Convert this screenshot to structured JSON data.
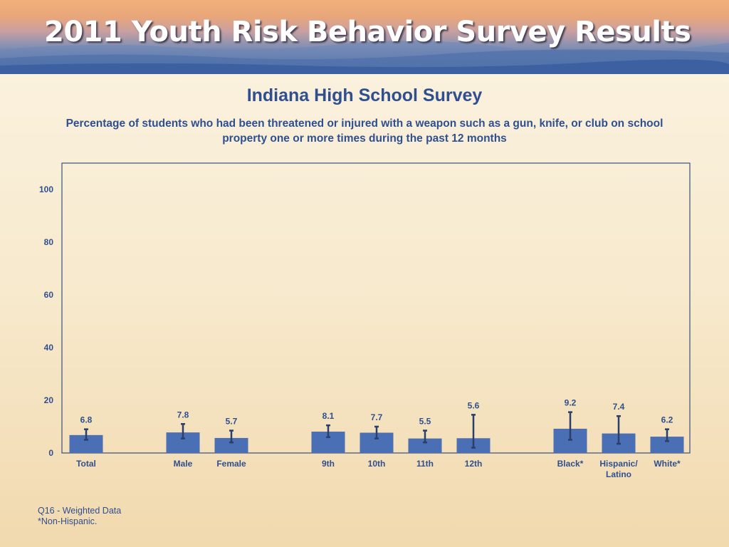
{
  "banner": {
    "title": "2011 Youth Risk Behavior Survey Results"
  },
  "chart_data": {
    "type": "bar",
    "title": "Indiana High School Survey",
    "subtitle": "Percentage of students who had been threatened or injured with a weapon such as a gun, knife, or club on school property one or more times during the past 12 months",
    "ylim": [
      0,
      100
    ],
    "yticks": [
      0,
      20,
      40,
      60,
      80,
      100
    ],
    "grid": false,
    "categories": [
      "Total",
      "Male",
      "Female",
      "9th",
      "10th",
      "11th",
      "12th",
      "Black*",
      "Hispanic/\nLatino",
      "White*"
    ],
    "groups": [
      [
        "Total"
      ],
      [
        "Male",
        "Female"
      ],
      [
        "9th",
        "10th",
        "11th",
        "12th"
      ],
      [
        "Black*",
        "Hispanic/\nLatino",
        "White*"
      ]
    ],
    "values": [
      6.8,
      7.8,
      5.7,
      8.1,
      7.7,
      5.5,
      5.6,
      9.2,
      7.4,
      6.2
    ],
    "value_labels": [
      "6.8",
      "7.8",
      "5.7",
      "8.1",
      "7.7",
      "5.5",
      "5.6",
      "9.2",
      "7.4",
      "6.2"
    ],
    "error_low": [
      5.0,
      5.5,
      4.0,
      6.0,
      5.5,
      4.0,
      2.0,
      5.0,
      3.5,
      4.5
    ],
    "error_high": [
      9.0,
      11.0,
      8.5,
      10.5,
      10.0,
      8.5,
      14.5,
      15.5,
      14.0,
      9.0
    ],
    "colors": {
      "bar": "#4a6fb5",
      "error": "#2b3f6b",
      "axis": "#3a4e7a",
      "text": "#2f4f8f"
    }
  },
  "footnotes": {
    "line1": "Q16 - Weighted Data",
    "line2": "*Non-Hispanic."
  }
}
